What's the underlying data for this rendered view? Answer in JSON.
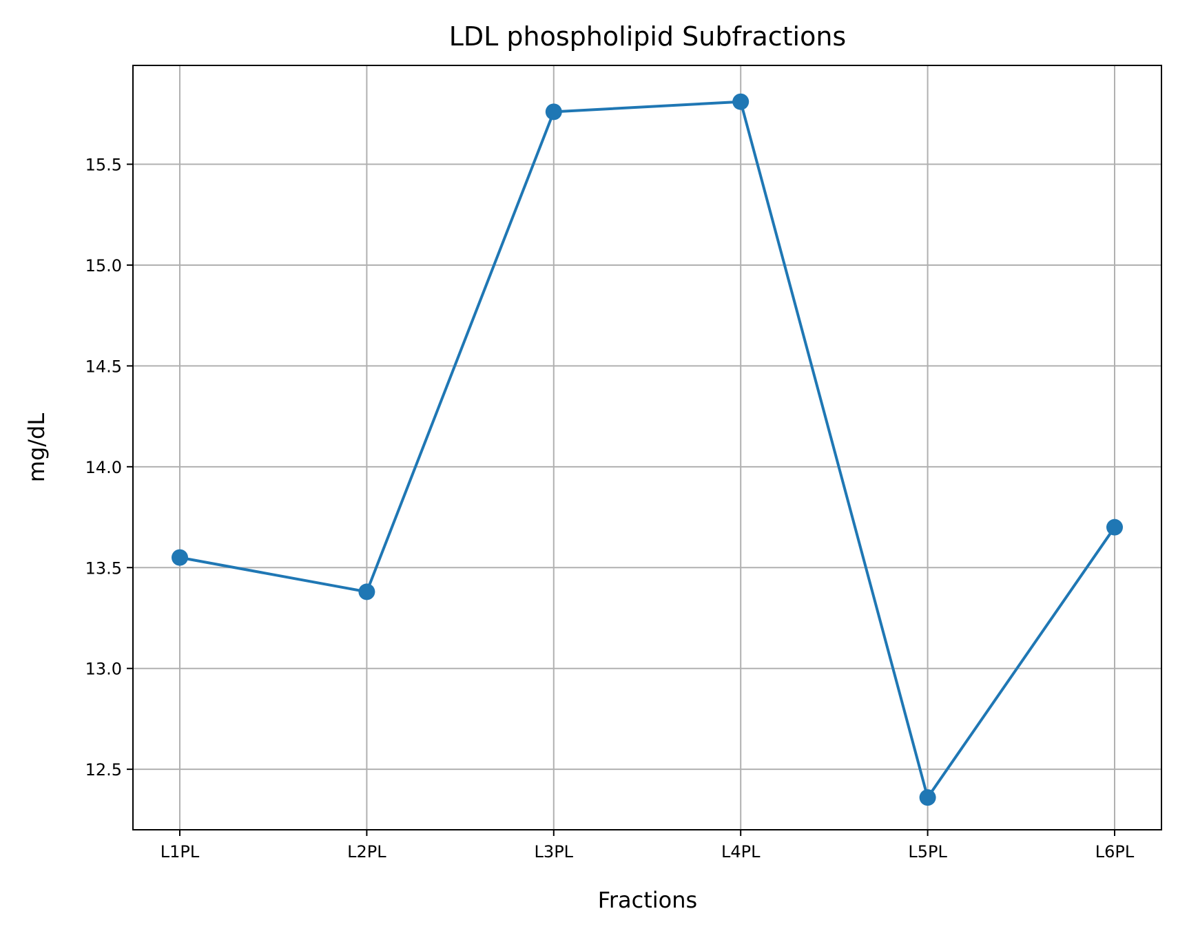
{
  "chart_data": {
    "type": "line",
    "title": "LDL phospholipid Subfractions",
    "xlabel": "Fractions",
    "ylabel": "mg/dL",
    "categories": [
      "L1PL",
      "L2PL",
      "L3PL",
      "L4PL",
      "L5PL",
      "L6PL"
    ],
    "series": [
      {
        "values": [
          13.55,
          13.38,
          15.76,
          15.81,
          12.36,
          13.7
        ],
        "color": "#1f77b4",
        "marker": "circle"
      }
    ],
    "ylim": [
      12.2,
      15.99
    ],
    "yticks": [
      12.5,
      13.0,
      13.5,
      14.0,
      14.5,
      15.0,
      15.5
    ],
    "ytick_labels": [
      "12.5",
      "13.0",
      "13.5",
      "14.0",
      "14.5",
      "15.0",
      "15.5"
    ],
    "grid": true,
    "legend": "none"
  }
}
